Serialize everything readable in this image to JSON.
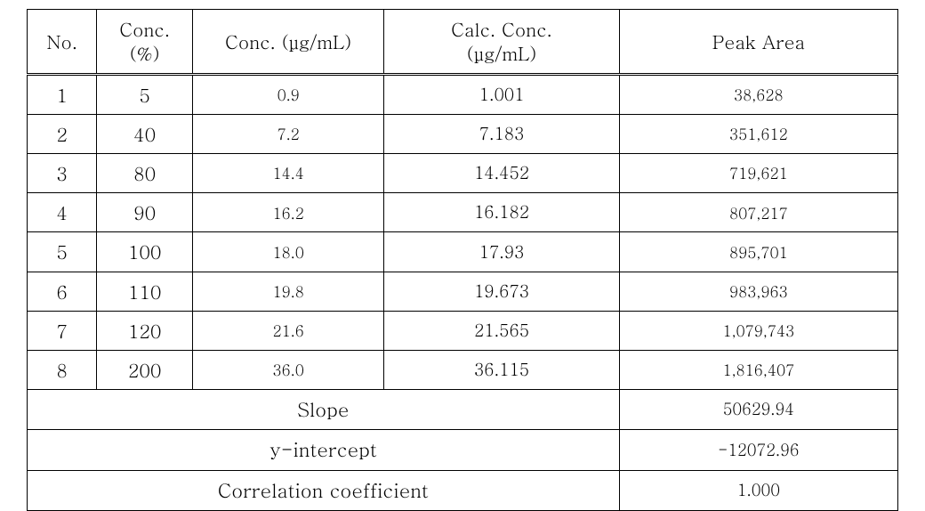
{
  "table": {
    "columns": [
      {
        "key": "no",
        "label": "No."
      },
      {
        "key": "pct",
        "label": "Conc.\n(%)"
      },
      {
        "key": "conc",
        "label": "Conc. (μg/mL)"
      },
      {
        "key": "calc",
        "label": "Calc. Conc.\n(μg/mL)"
      },
      {
        "key": "peak",
        "label": "Peak Area"
      }
    ],
    "rows": [
      {
        "no": "1",
        "pct": "5",
        "conc": "0.9",
        "calc": "1.001",
        "peak": "38,628"
      },
      {
        "no": "2",
        "pct": "40",
        "conc": "7.2",
        "calc": "7.183",
        "peak": "351,612"
      },
      {
        "no": "3",
        "pct": "80",
        "conc": "14.4",
        "calc": "14.452",
        "peak": "719,621"
      },
      {
        "no": "4",
        "pct": "90",
        "conc": "16.2",
        "calc": "16.182",
        "peak": "807,217"
      },
      {
        "no": "5",
        "pct": "100",
        "conc": "18.0",
        "calc": "17.93",
        "peak": "895,701"
      },
      {
        "no": "6",
        "pct": "110",
        "conc": "19.8",
        "calc": "19.673",
        "peak": "983,963"
      },
      {
        "no": "7",
        "pct": "120",
        "conc": "21.6",
        "calc": "21.565",
        "peak": "1,079,743"
      },
      {
        "no": "8",
        "pct": "200",
        "conc": "36.0",
        "calc": "36.115",
        "peak": "1,816,407"
      }
    ],
    "summary": [
      {
        "label": "Slope",
        "value": "50629.94"
      },
      {
        "label": "y-intercept",
        "value": "-12072.96"
      },
      {
        "label": "Correlation coefficient",
        "value": "1.000"
      }
    ],
    "styling": {
      "border_color": "#000000",
      "background_color": "#ffffff",
      "text_color": "#000000",
      "header_fontsize": 21,
      "body_fontsize": 19,
      "small_fontsize": 17,
      "summary_label_fontsize": 22,
      "summary_value_fontsize": 18,
      "double_border_rows": "header-bottom",
      "col_widths_pct": [
        8,
        11,
        22,
        27,
        32
      ]
    }
  }
}
